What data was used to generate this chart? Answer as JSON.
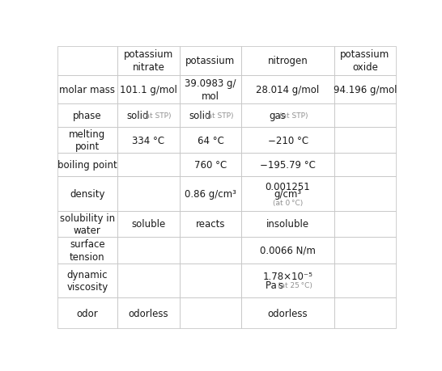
{
  "col_headers": [
    "",
    "potassium\nnitrate",
    "potassium",
    "nitrogen",
    "potassium\noxide"
  ],
  "row_labels": [
    "molar mass",
    "phase",
    "melting\npoint",
    "boiling point",
    "density",
    "solubility in\nwater",
    "surface\ntension",
    "dynamic\nviscosity",
    "odor"
  ],
  "cells": [
    [
      "101.1 g/mol",
      "39.0983 g/\nmol",
      "28.014 g/mol",
      "94.196 g/mol"
    ],
    [
      [
        "solid",
        "(at STP)"
      ],
      [
        "solid",
        "(at STP)"
      ],
      [
        "gas",
        "(at STP)"
      ],
      ""
    ],
    [
      "334 °C",
      "64 °C",
      "−210 °C",
      ""
    ],
    [
      "",
      "760 °C",
      "−195.79 °C",
      ""
    ],
    [
      "",
      "0.86 g/cm³",
      "density_special",
      ""
    ],
    [
      "soluble",
      "reacts",
      "insoluble",
      ""
    ],
    [
      "",
      "",
      "0.0066 N/m",
      ""
    ],
    [
      "",
      "",
      "viscosity_special",
      ""
    ],
    [
      "odorless",
      "",
      "odorless",
      ""
    ]
  ],
  "density_line1": "0.001251",
  "density_line2": "g/cm³",
  "density_small": "(at 0 °C)",
  "visc_line1": "1.78×10⁻⁵",
  "visc_line2": "Pa s",
  "visc_small": "(at 25 °C)",
  "bg_color": "#ffffff",
  "line_color": "#c8c8c8",
  "text_color": "#1a1a1a",
  "small_color": "#909090",
  "font_size": 8.5,
  "small_font_size": 6.5,
  "header_font_size": 8.5,
  "col_proportions": [
    0.178,
    0.183,
    0.183,
    0.274,
    0.182
  ],
  "row_proportions": [
    0.093,
    0.092,
    0.074,
    0.083,
    0.074,
    0.11,
    0.083,
    0.084,
    0.11,
    0.097
  ]
}
